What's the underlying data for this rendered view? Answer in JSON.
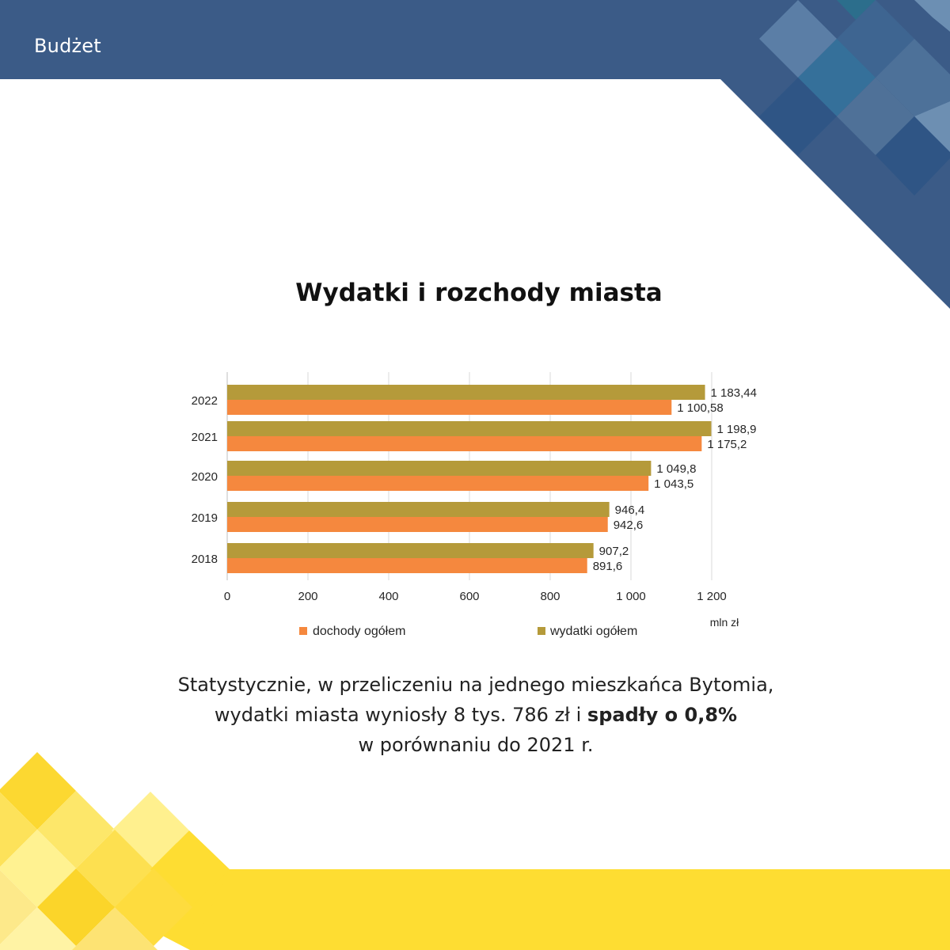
{
  "header": {
    "section": "Budżet"
  },
  "title": "Wydatki i rozchody miasta",
  "colors": {
    "header_bg": "#3b5b87",
    "dochody": "#f5883e",
    "wydatki": "#b59a3a",
    "yellow_band": "#fedd32"
  },
  "chart_data": {
    "type": "bar",
    "orientation": "horizontal",
    "categories": [
      "2022",
      "2021",
      "2020",
      "2019",
      "2018"
    ],
    "series": [
      {
        "name": "dochody ogółem",
        "values": [
          1100.58,
          1175.2,
          1043.5,
          942.6,
          891.6
        ],
        "labels": [
          "1 100,58",
          "1 175,2",
          "1 043,5",
          "942,6",
          "891,6"
        ]
      },
      {
        "name": "wydatki ogółem",
        "values": [
          1183.44,
          1198.9,
          1049.8,
          946.4,
          907.2
        ],
        "labels": [
          "1 183,44",
          "1 198,9",
          "1 049,8",
          "946,4",
          "907,2"
        ]
      }
    ],
    "xlim": [
      0,
      1200
    ],
    "xticks": [
      0,
      200,
      400,
      600,
      800,
      1000,
      1200
    ],
    "xtick_labels": [
      "0",
      "200",
      "400",
      "600",
      "800",
      "1 000",
      "1 200"
    ],
    "xlabel": "mln zł",
    "grid": true,
    "legend_position": "bottom"
  },
  "caption": {
    "line1": "Statystycznie, w przeliczeniu na jednego mieszkańca Bytomia,",
    "line2_prefix": "wydatki miasta wyniosły 8 tys. 786 zł i ",
    "line2_bold": "spadły o 0,8%",
    "line3": "w porównaniu do 2021 r."
  }
}
